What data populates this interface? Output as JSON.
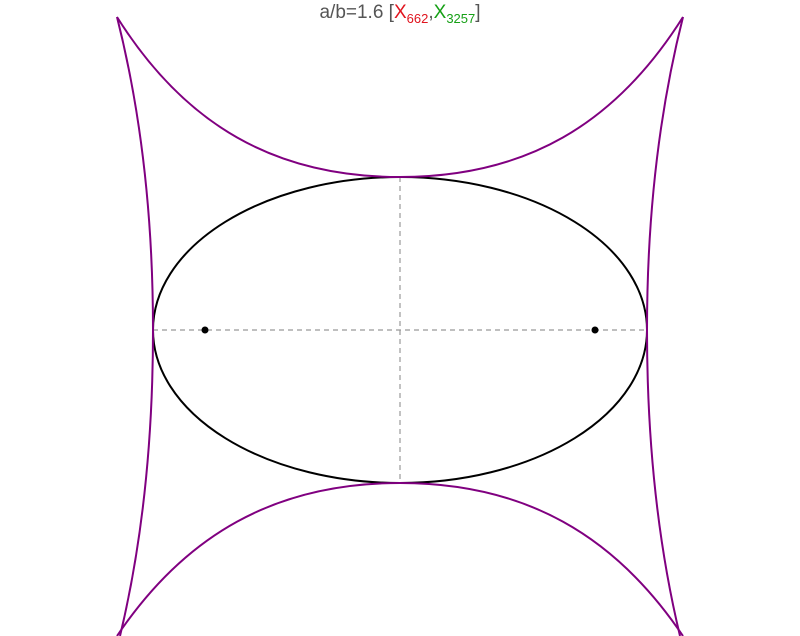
{
  "title": {
    "prefix": "a/b=1.6 [",
    "x1": "X",
    "x1_sub": "662",
    "sep": ",",
    "x2": "X",
    "x2_sub": "3257",
    "suffix": "]"
  },
  "colors": {
    "title": "#555555",
    "x662": "#e0141e",
    "x3257": "#16a016",
    "ellipse": "#000000",
    "evolute": "#800080",
    "axes": "#999999",
    "foci": "#000000"
  },
  "diagram": {
    "aspect_ratio": 1.6,
    "curves": [
      "ellipse",
      "evolute-envelope"
    ],
    "points": [
      "focus-left",
      "focus-right"
    ],
    "axes": [
      "major-axis",
      "minor-axis"
    ]
  }
}
